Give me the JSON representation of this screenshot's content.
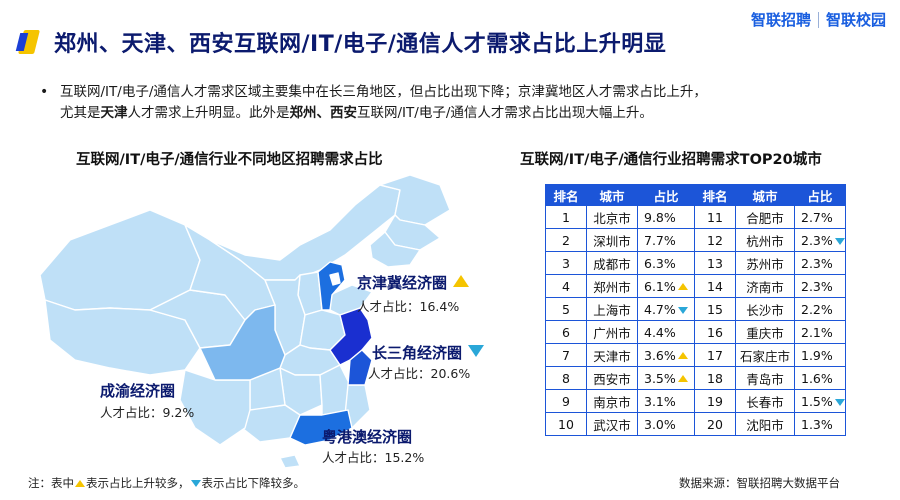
{
  "header": {
    "title": "郑州、天津、西安互联网/IT/电子/通信人才需求占比上升明显",
    "brand_left": "智联招聘",
    "brand_right": "智联校园"
  },
  "summary": {
    "line1": "互联网/IT/电子/通信人才需求区域主要集中在长三角地区，但占比出现下降；京津冀地区人才需求占比上升，",
    "line2_pre": "尤其是",
    "line2_b1": "天津",
    "line2_mid": "人才需求上升明显。此外是",
    "line2_b2": "郑州、西安",
    "line2_post": "互联网/IT/电子/通信人才需求占比出现大幅上升。"
  },
  "map": {
    "title": "互联网/IT/电子/通信行业不同地区招聘需求占比",
    "base_color": "#bfe0f7",
    "highlight_color": "#1c6fe0",
    "regions": [
      {
        "name": "京津冀经济圈",
        "share": "人才占比：16.4%",
        "trend": "up"
      },
      {
        "name": "长三角经济圈",
        "share": "人才占比：20.6%",
        "trend": "down"
      },
      {
        "name": "成渝经济圈",
        "share": "人才占比：9.2%",
        "trend": "none"
      },
      {
        "name": "粤港澳经济圈",
        "share": "人才占比：15.2%",
        "trend": "none"
      }
    ]
  },
  "chart_data": {
    "type": "table",
    "title": "互联网/IT/电子/通信行业招聘需求TOP20城市",
    "columns": [
      "排名",
      "城市",
      "占比",
      "排名",
      "城市",
      "占比"
    ],
    "rows": [
      [
        {
          "rank": "1",
          "city": "北京市",
          "share": "9.8%",
          "trend": ""
        },
        {
          "rank": "11",
          "city": "合肥市",
          "share": "2.7%",
          "trend": ""
        }
      ],
      [
        {
          "rank": "2",
          "city": "深圳市",
          "share": "7.7%",
          "trend": ""
        },
        {
          "rank": "12",
          "city": "杭州市",
          "share": "2.3%",
          "trend": "down"
        }
      ],
      [
        {
          "rank": "3",
          "city": "成都市",
          "share": "6.3%",
          "trend": ""
        },
        {
          "rank": "13",
          "city": "苏州市",
          "share": "2.3%",
          "trend": ""
        }
      ],
      [
        {
          "rank": "4",
          "city": "郑州市",
          "share": "6.1%",
          "trend": "up"
        },
        {
          "rank": "14",
          "city": "济南市",
          "share": "2.3%",
          "trend": ""
        }
      ],
      [
        {
          "rank": "5",
          "city": "上海市",
          "share": "4.7%",
          "trend": "down"
        },
        {
          "rank": "15",
          "city": "长沙市",
          "share": "2.2%",
          "trend": ""
        }
      ],
      [
        {
          "rank": "6",
          "city": "广州市",
          "share": "4.4%",
          "trend": ""
        },
        {
          "rank": "16",
          "city": "重庆市",
          "share": "2.1%",
          "trend": ""
        }
      ],
      [
        {
          "rank": "7",
          "city": "天津市",
          "share": "3.6%",
          "trend": "up"
        },
        {
          "rank": "17",
          "city": "石家庄市",
          "share": "1.9%",
          "trend": ""
        }
      ],
      [
        {
          "rank": "8",
          "city": "西安市",
          "share": "3.5%",
          "trend": "up"
        },
        {
          "rank": "18",
          "city": "青岛市",
          "share": "1.6%",
          "trend": ""
        }
      ],
      [
        {
          "rank": "9",
          "city": "南京市",
          "share": "3.1%",
          "trend": ""
        },
        {
          "rank": "19",
          "city": "长春市",
          "share": "1.5%",
          "trend": "down"
        }
      ],
      [
        {
          "rank": "10",
          "city": "武汉市",
          "share": "3.0%",
          "trend": ""
        },
        {
          "rank": "20",
          "city": "沈阳市",
          "share": "1.3%",
          "trend": ""
        }
      ]
    ]
  },
  "footer": {
    "note_prefix": "注：表中",
    "note_up": "表示占比上升较多，",
    "note_down": "表示占比下降较多。",
    "source": "数据来源：智联招聘大数据平台"
  },
  "colors": {
    "title": "#0b1a6e",
    "accent_yellow": "#f5c400",
    "accent_blue": "#1c55d8",
    "down_arrow": "#2aa7d8"
  }
}
